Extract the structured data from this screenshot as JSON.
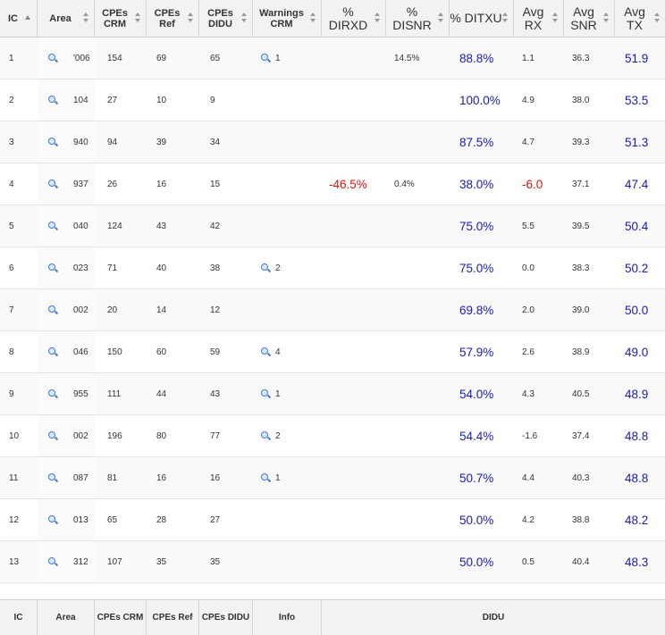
{
  "header": {
    "ic": "IC",
    "area": "Area",
    "cpes_crm": "CPEs CRM",
    "cpes_ref": "CPEs Ref",
    "cpes_didu": "CPEs DIDU",
    "warnings_crm": "Warnings CRM",
    "pct_dirxd": "% DIRXD",
    "pct_disnr": "% DISNR",
    "pct_ditxu": "% DITXU",
    "avg_rx": "Avg RX",
    "avg_snr": "Avg SNR",
    "avg_tx": "Avg TX"
  },
  "colors": {
    "tx": "#1a1ab4",
    "rx": "#e01010",
    "snr": "#ff00ff"
  },
  "rows": [
    {
      "ic": "1",
      "area": "'006",
      "cpes_crm": "154",
      "cpes_ref": "69",
      "cpes_didu": "65",
      "warnings": "1",
      "dirxd": "",
      "disnr": "14.5%",
      "ditxu": "88.8%",
      "avg_rx": "1.1",
      "avg_snr": "36.3",
      "avg_tx": "51.9"
    },
    {
      "ic": "2",
      "area": "104",
      "cpes_crm": "27",
      "cpes_ref": "10",
      "cpes_didu": "9",
      "warnings": "",
      "dirxd": "",
      "disnr": "",
      "ditxu": "100.0%",
      "avg_rx": "4.9",
      "avg_snr": "38.0",
      "avg_tx": "53.5"
    },
    {
      "ic": "3",
      "area": "940",
      "cpes_crm": "94",
      "cpes_ref": "39",
      "cpes_didu": "34",
      "warnings": "",
      "dirxd": "",
      "disnr": "",
      "ditxu": "87.5%",
      "avg_rx": "4.7",
      "avg_snr": "39.3",
      "avg_tx": "51.3"
    },
    {
      "ic": "4",
      "area": "937",
      "cpes_crm": "26",
      "cpes_ref": "16",
      "cpes_didu": "15",
      "warnings": "",
      "dirxd": "-46.5%",
      "disnr": "0.4%",
      "ditxu": "38.0%",
      "avg_rx": "-6.0",
      "avg_snr": "37.1",
      "avg_tx": "47.4"
    },
    {
      "ic": "5",
      "area": "040",
      "cpes_crm": "124",
      "cpes_ref": "43",
      "cpes_didu": "42",
      "warnings": "",
      "dirxd": "",
      "disnr": "",
      "ditxu": "75.0%",
      "avg_rx": "5.5",
      "avg_snr": "39.5",
      "avg_tx": "50.4"
    },
    {
      "ic": "6",
      "area": "023",
      "cpes_crm": "71",
      "cpes_ref": "40",
      "cpes_didu": "38",
      "warnings": "2",
      "dirxd": "",
      "disnr": "",
      "ditxu": "75.0%",
      "avg_rx": "0.0",
      "avg_snr": "38.3",
      "avg_tx": "50.2"
    },
    {
      "ic": "7",
      "area": "002",
      "cpes_crm": "20",
      "cpes_ref": "14",
      "cpes_didu": "12",
      "warnings": "",
      "dirxd": "",
      "disnr": "",
      "ditxu": "69.8%",
      "avg_rx": "2.0",
      "avg_snr": "39.0",
      "avg_tx": "50.0"
    },
    {
      "ic": "8",
      "area": "046",
      "cpes_crm": "150",
      "cpes_ref": "60",
      "cpes_didu": "59",
      "warnings": "4",
      "dirxd": "",
      "disnr": "",
      "ditxu": "57.9%",
      "avg_rx": "2.6",
      "avg_snr": "38.9",
      "avg_tx": "49.0"
    },
    {
      "ic": "9",
      "area": "955",
      "cpes_crm": "111",
      "cpes_ref": "44",
      "cpes_didu": "43",
      "warnings": "1",
      "dirxd": "",
      "disnr": "",
      "ditxu": "54.0%",
      "avg_rx": "4.3",
      "avg_snr": "40.5",
      "avg_tx": "48.9"
    },
    {
      "ic": "10",
      "area": "002",
      "cpes_crm": "196",
      "cpes_ref": "80",
      "cpes_didu": "77",
      "warnings": "2",
      "dirxd": "",
      "disnr": "",
      "ditxu": "54.4%",
      "avg_rx": "-1.6",
      "avg_snr": "37.4",
      "avg_tx": "48.8"
    },
    {
      "ic": "11",
      "area": "087",
      "cpes_crm": "81",
      "cpes_ref": "16",
      "cpes_didu": "16",
      "warnings": "1",
      "dirxd": "",
      "disnr": "",
      "ditxu": "50.7%",
      "avg_rx": "4.4",
      "avg_snr": "40.3",
      "avg_tx": "48.8"
    },
    {
      "ic": "12",
      "area": "013",
      "cpes_crm": "65",
      "cpes_ref": "28",
      "cpes_didu": "27",
      "warnings": "",
      "dirxd": "",
      "disnr": "",
      "ditxu": "50.0%",
      "avg_rx": "4.2",
      "avg_snr": "38.8",
      "avg_tx": "48.2"
    },
    {
      "ic": "13",
      "area": "312",
      "cpes_crm": "107",
      "cpes_ref": "35",
      "cpes_didu": "35",
      "warnings": "",
      "dirxd": "",
      "disnr": "",
      "ditxu": "50.0%",
      "avg_rx": "0.5",
      "avg_snr": "40.4",
      "avg_tx": "48.3"
    }
  ],
  "footer": {
    "ic": "IC",
    "area": "Area",
    "cpes_crm": "CPEs CRM",
    "cpes_ref": "CPEs Ref",
    "cpes_didu": "CPEs DIDU",
    "info": "Info",
    "didu": "DIDU"
  }
}
